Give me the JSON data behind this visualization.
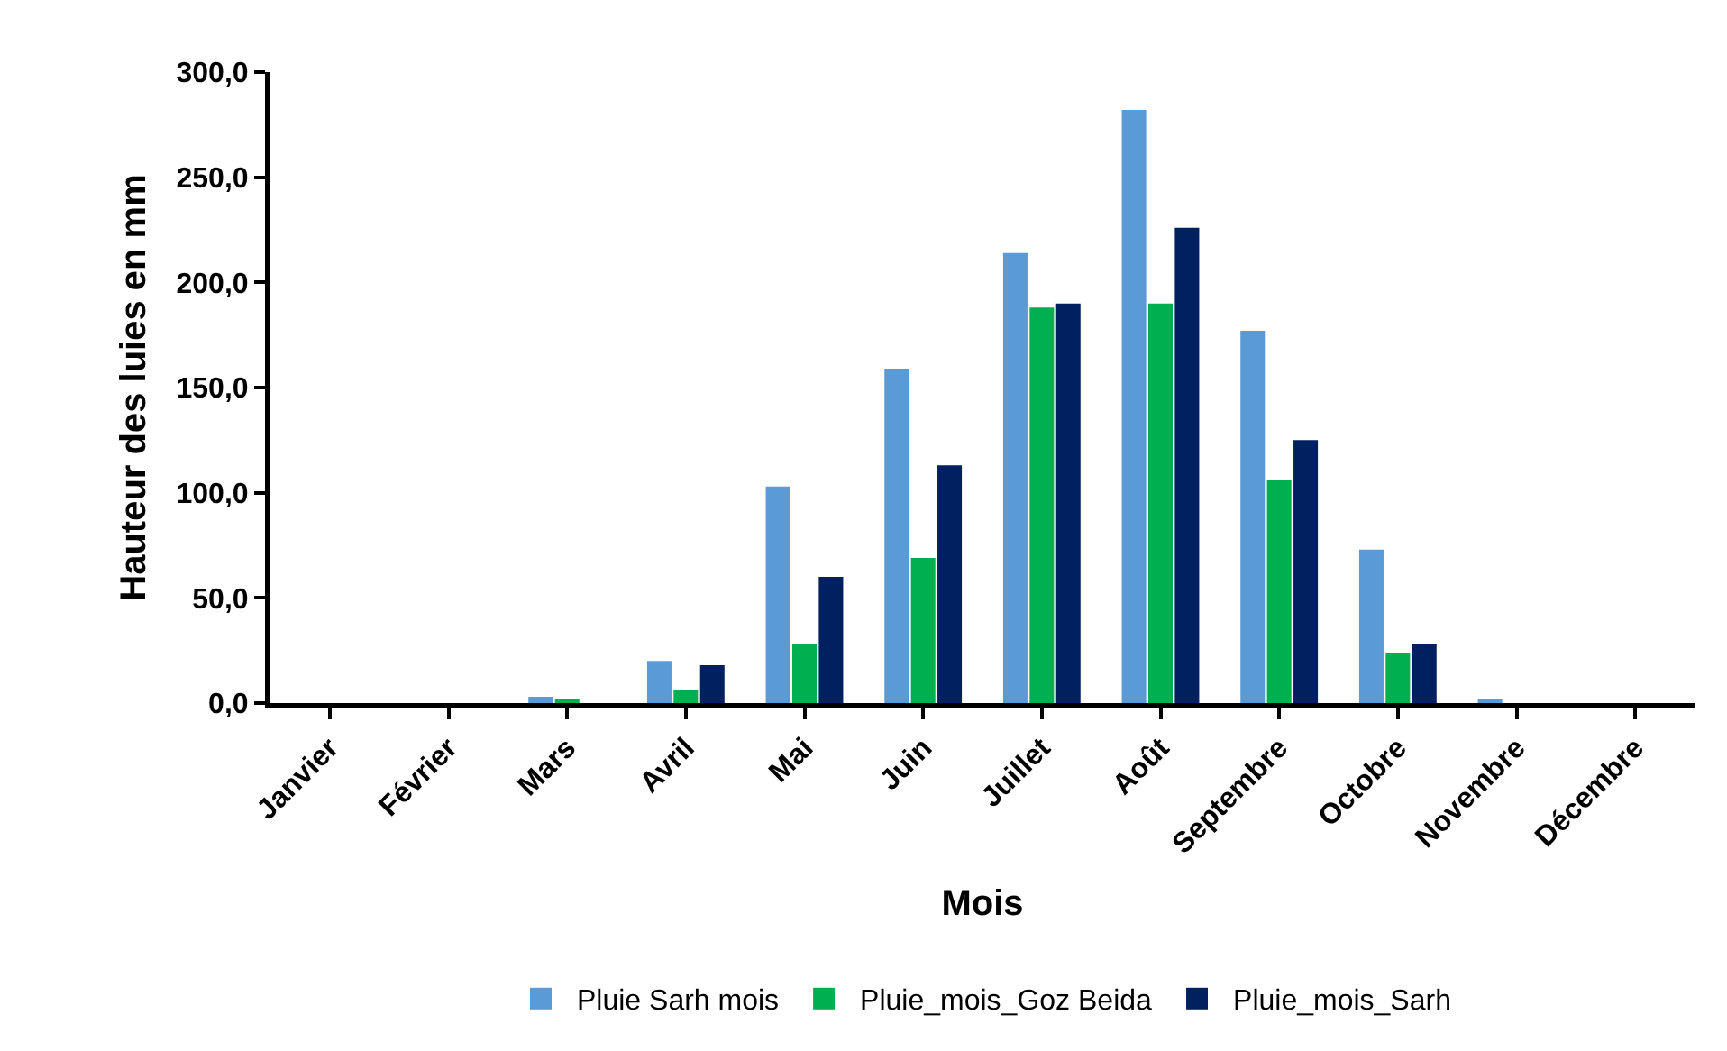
{
  "chart_data": {
    "type": "bar",
    "xlabel": "Mois",
    "ylabel": "Hauteur des luies en mm",
    "categories": [
      "Janvier",
      "Février",
      "Mars",
      "Avril",
      "Mai",
      "Juin",
      "Juillet",
      "Août",
      "Septembre",
      "Octobre",
      "Novembre",
      "Décembre"
    ],
    "series": [
      {
        "name": "Pluie Sarh mois",
        "color": "#5b9bd5",
        "values": [
          0,
          0,
          3,
          20,
          103,
          159,
          214,
          282,
          177,
          73,
          2,
          0
        ]
      },
      {
        "name": "Pluie_mois_Goz Beida",
        "color": "#00b050",
        "values": [
          0,
          0,
          2,
          6,
          28,
          69,
          188,
          190,
          106,
          24,
          0,
          0
        ]
      },
      {
        "name": "Pluie_mois_Sarh",
        "color": "#002060",
        "values": [
          0,
          0,
          0,
          18,
          60,
          113,
          190,
          226,
          125,
          28,
          0,
          0
        ]
      }
    ],
    "ylim": [
      0,
      300
    ],
    "yticks": [
      {
        "value": 0,
        "label": "0,0"
      },
      {
        "value": 50,
        "label": "50,0"
      },
      {
        "value": 100,
        "label": "100,0"
      },
      {
        "value": 150,
        "label": "150,0"
      },
      {
        "value": 200,
        "label": "200,0"
      },
      {
        "value": 250,
        "label": "250,0"
      },
      {
        "value": 300,
        "label": "300,0"
      }
    ],
    "grid": false,
    "legend": "bottom"
  }
}
